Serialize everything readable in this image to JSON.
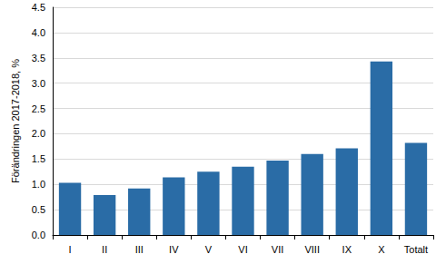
{
  "chart_data": {
    "type": "bar",
    "y_label": "Förändringen 2017-2018, %",
    "categories": [
      "I",
      "II",
      "III",
      "IV",
      "V",
      "VI",
      "VII",
      "VIII",
      "IX",
      "X",
      "Totalt"
    ],
    "values": [
      1.03,
      0.79,
      0.92,
      1.14,
      1.25,
      1.35,
      1.47,
      1.6,
      1.71,
      3.43,
      1.82
    ],
    "color": "#2a6ca6",
    "ylim": [
      0,
      4.5
    ],
    "yticks": [
      {
        "value": 0,
        "label": "0.0"
      },
      0.5,
      {
        "value": 1,
        "label": "1.0"
      },
      1.5,
      {
        "value": 2,
        "label": "2.0"
      },
      2.5,
      {
        "value": 3,
        "label": "3.0"
      },
      3.5,
      {
        "value": 4,
        "label": "4.0"
      },
      4.5
    ],
    "grid": true
  }
}
